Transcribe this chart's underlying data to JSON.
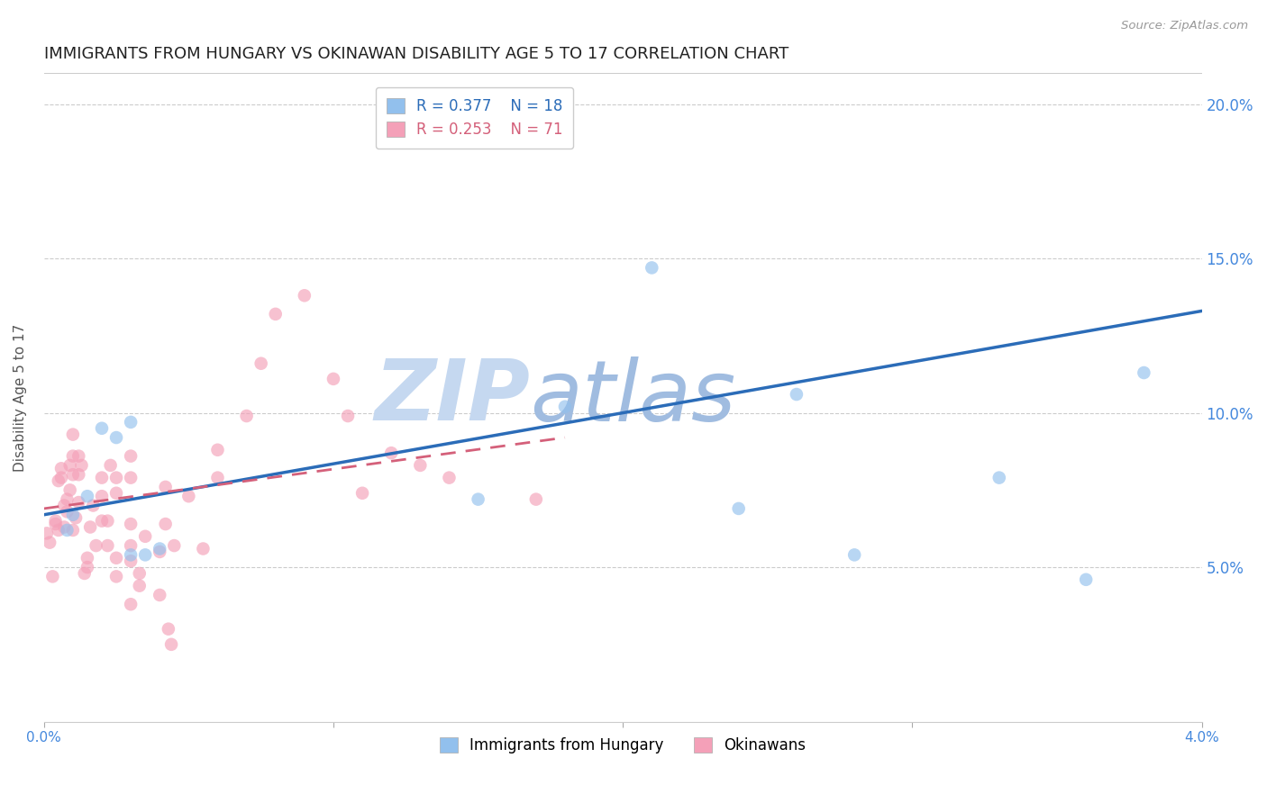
{
  "title": "IMMIGRANTS FROM HUNGARY VS OKINAWAN DISABILITY AGE 5 TO 17 CORRELATION CHART",
  "source": "Source: ZipAtlas.com",
  "ylabel": "Disability Age 5 to 17",
  "xlim": [
    0.0,
    0.04
  ],
  "ylim": [
    0.0,
    0.21
  ],
  "yticks": [
    0.05,
    0.1,
    0.15,
    0.2
  ],
  "ytick_labels": [
    "5.0%",
    "10.0%",
    "15.0%",
    "20.0%"
  ],
  "xticks": [
    0.0,
    0.01,
    0.02,
    0.03,
    0.04
  ],
  "xtick_labels": [
    "0.0%",
    "",
    "",
    "",
    "4.0%"
  ],
  "watermark_zip": "ZIP",
  "watermark_atlas": "atlas",
  "hungary_scatter": [
    [
      0.0008,
      0.062
    ],
    [
      0.001,
      0.067
    ],
    [
      0.0015,
      0.073
    ],
    [
      0.002,
      0.095
    ],
    [
      0.0025,
      0.092
    ],
    [
      0.003,
      0.097
    ],
    [
      0.003,
      0.054
    ],
    [
      0.0035,
      0.054
    ],
    [
      0.004,
      0.056
    ],
    [
      0.015,
      0.072
    ],
    [
      0.018,
      0.102
    ],
    [
      0.021,
      0.147
    ],
    [
      0.024,
      0.069
    ],
    [
      0.026,
      0.106
    ],
    [
      0.028,
      0.054
    ],
    [
      0.033,
      0.079
    ],
    [
      0.036,
      0.046
    ],
    [
      0.038,
      0.113
    ]
  ],
  "okinawa_scatter": [
    [
      0.0001,
      0.061
    ],
    [
      0.0002,
      0.058
    ],
    [
      0.0003,
      0.047
    ],
    [
      0.0004,
      0.065
    ],
    [
      0.0004,
      0.064
    ],
    [
      0.0005,
      0.062
    ],
    [
      0.0005,
      0.078
    ],
    [
      0.0006,
      0.079
    ],
    [
      0.0006,
      0.082
    ],
    [
      0.0007,
      0.063
    ],
    [
      0.0007,
      0.07
    ],
    [
      0.0008,
      0.068
    ],
    [
      0.0008,
      0.072
    ],
    [
      0.0009,
      0.075
    ],
    [
      0.0009,
      0.083
    ],
    [
      0.001,
      0.062
    ],
    [
      0.001,
      0.08
    ],
    [
      0.001,
      0.086
    ],
    [
      0.001,
      0.093
    ],
    [
      0.0011,
      0.066
    ],
    [
      0.0012,
      0.071
    ],
    [
      0.0012,
      0.08
    ],
    [
      0.0012,
      0.086
    ],
    [
      0.0013,
      0.083
    ],
    [
      0.0014,
      0.048
    ],
    [
      0.0015,
      0.05
    ],
    [
      0.0015,
      0.053
    ],
    [
      0.0016,
      0.063
    ],
    [
      0.0017,
      0.07
    ],
    [
      0.0018,
      0.057
    ],
    [
      0.002,
      0.065
    ],
    [
      0.002,
      0.073
    ],
    [
      0.002,
      0.079
    ],
    [
      0.0022,
      0.057
    ],
    [
      0.0022,
      0.065
    ],
    [
      0.0023,
      0.083
    ],
    [
      0.0025,
      0.047
    ],
    [
      0.0025,
      0.053
    ],
    [
      0.0025,
      0.074
    ],
    [
      0.0025,
      0.079
    ],
    [
      0.003,
      0.038
    ],
    [
      0.003,
      0.052
    ],
    [
      0.003,
      0.057
    ],
    [
      0.003,
      0.064
    ],
    [
      0.003,
      0.079
    ],
    [
      0.003,
      0.086
    ],
    [
      0.0033,
      0.044
    ],
    [
      0.0033,
      0.048
    ],
    [
      0.0035,
      0.06
    ],
    [
      0.004,
      0.041
    ],
    [
      0.004,
      0.055
    ],
    [
      0.0042,
      0.064
    ],
    [
      0.0042,
      0.076
    ],
    [
      0.0043,
      0.03
    ],
    [
      0.0044,
      0.025
    ],
    [
      0.0045,
      0.057
    ],
    [
      0.005,
      0.073
    ],
    [
      0.0055,
      0.056
    ],
    [
      0.006,
      0.079
    ],
    [
      0.006,
      0.088
    ],
    [
      0.007,
      0.099
    ],
    [
      0.0075,
      0.116
    ],
    [
      0.008,
      0.132
    ],
    [
      0.009,
      0.138
    ],
    [
      0.01,
      0.111
    ],
    [
      0.0105,
      0.099
    ],
    [
      0.011,
      0.074
    ],
    [
      0.012,
      0.087
    ],
    [
      0.013,
      0.083
    ],
    [
      0.014,
      0.079
    ],
    [
      0.017,
      0.072
    ]
  ],
  "hungary_line_x0": 0.0,
  "hungary_line_x1": 0.04,
  "hungary_line_y0": 0.067,
  "hungary_line_y1": 0.133,
  "okinawa_line_x0": 0.0,
  "okinawa_line_x1": 0.018,
  "okinawa_line_y0": 0.069,
  "okinawa_line_y1": 0.092,
  "scatter_alpha": 0.65,
  "scatter_size": 110,
  "hungary_color": "#92c0ed",
  "okinawa_color": "#f4a0b8",
  "hungary_line_color": "#2b6cb8",
  "okinawa_line_color": "#d4607a",
  "background_color": "#ffffff",
  "grid_color": "#cccccc",
  "title_fontsize": 13,
  "label_fontsize": 11,
  "right_tick_color": "#4488dd",
  "watermark_zip_color": "#c5d8f0",
  "watermark_atlas_color": "#a0bce0",
  "watermark_fontsize": 68
}
